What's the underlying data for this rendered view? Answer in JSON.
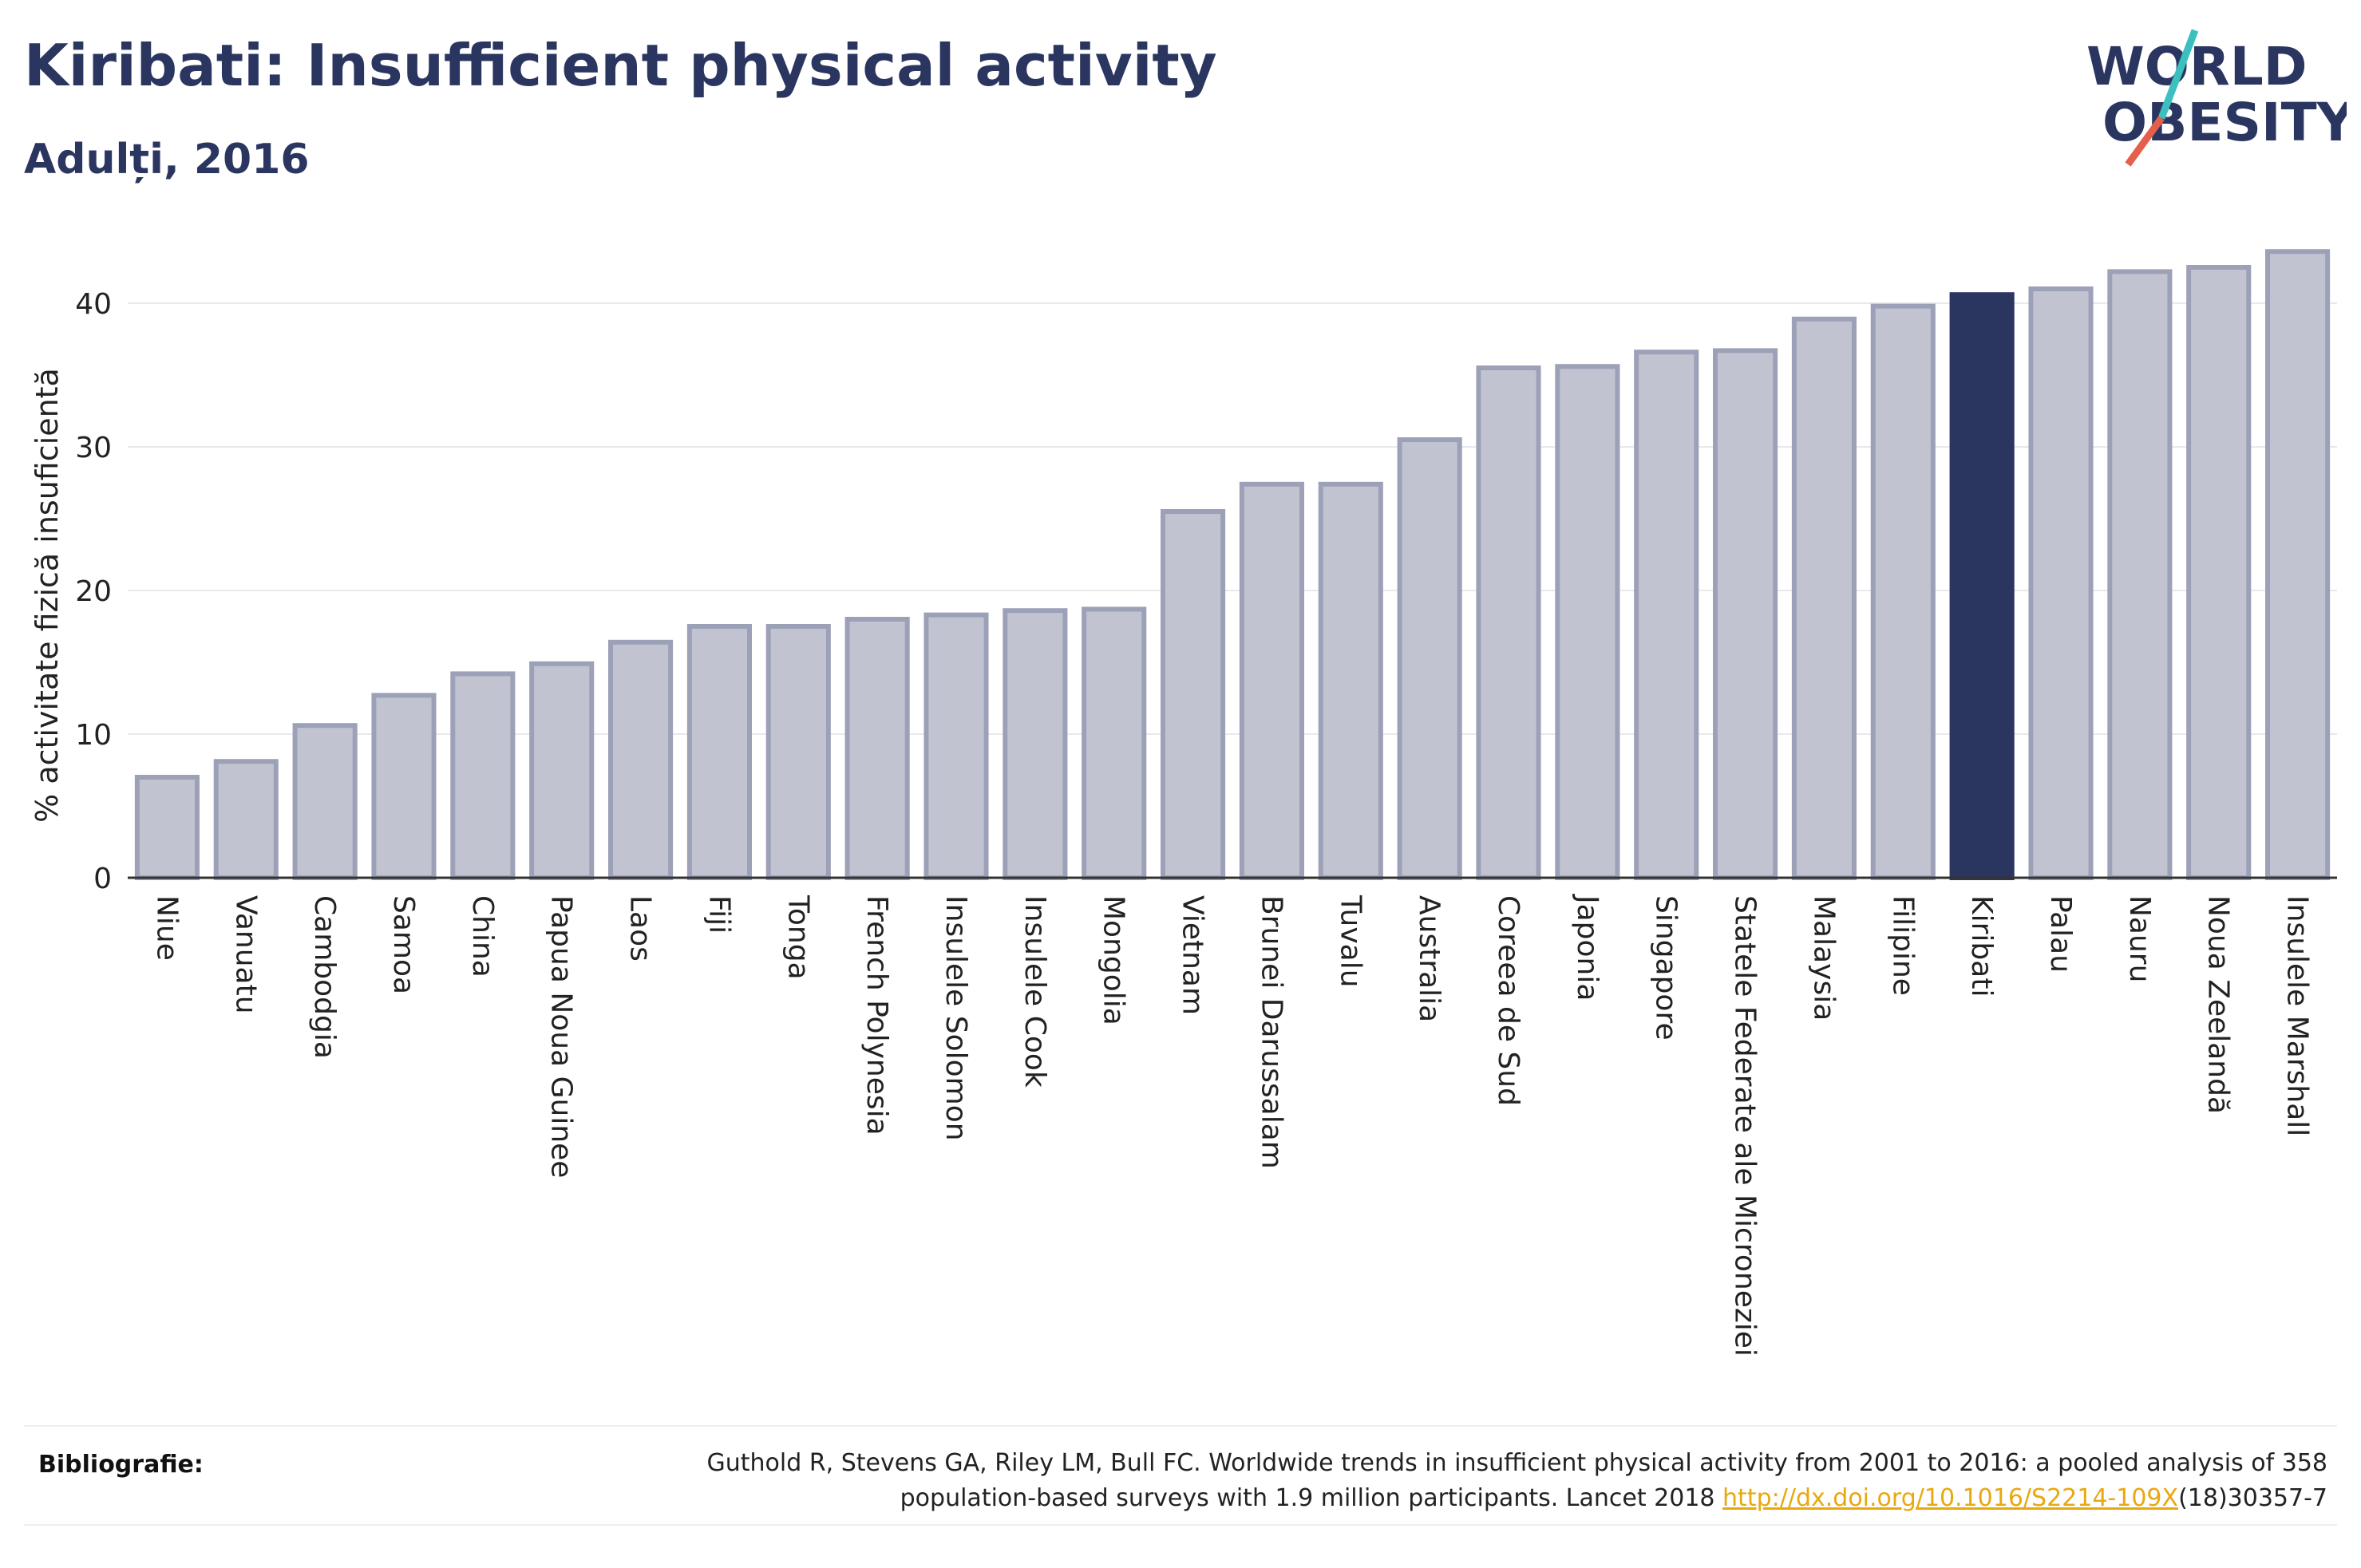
{
  "header": {
    "title": "Kiribati: Insufficient physical activity",
    "subtitle": "Adulți, 2016"
  },
  "logo": {
    "line1": "WORLD",
    "line2": "OBESITY",
    "colors": {
      "text": "#2b3660",
      "slash_teal": "#3bbfbf",
      "slash_red": "#e4604d"
    }
  },
  "chart_data": {
    "type": "bar",
    "ylabel": "% activitate fizică insuficientă",
    "ylim": [
      0,
      45
    ],
    "yticks": [
      0,
      10,
      20,
      30,
      40
    ],
    "grid": true,
    "categories": [
      "Niue",
      "Vanuatu",
      "Cambodgia",
      "Samoa",
      "China",
      "Papua Noua Guinee",
      "Laos",
      "Fiji",
      "Tonga",
      "French Polynesia",
      "Insulele Solomon",
      "Insulele Cook",
      "Mongolia",
      "Vietnam",
      "Brunei Darussalam",
      "Tuvalu",
      "Australia",
      "Coreea de Sud",
      "Japonia",
      "Singapore",
      "Statele Federate ale Microneziei",
      "Malaysia",
      "Filipine",
      "Kiribati",
      "Palau",
      "Nauru",
      "Noua Zeelandă",
      "Insulele Marshall"
    ],
    "values": [
      7.0,
      8.1,
      10.6,
      12.7,
      14.2,
      14.9,
      16.4,
      17.5,
      17.5,
      18.0,
      18.3,
      18.6,
      18.7,
      25.5,
      27.4,
      27.4,
      30.5,
      35.5,
      35.6,
      36.6,
      36.7,
      38.9,
      39.8,
      40.6,
      41.0,
      42.2,
      42.5,
      43.6
    ],
    "highlight": "Kiribati",
    "colors": {
      "bar": "#c1c4d0",
      "bar_stroke": "#9da1b8",
      "highlight": "#2b3660",
      "grid": "#e8e8ee",
      "axis": "#333333"
    }
  },
  "bibliography": {
    "label": "Bibliografie:",
    "text_line1": "Guthold R, Stevens GA, Riley LM, Bull FC. Worldwide trends in insufficient physical activity from 2001 to 2016: a pooled analysis of 358",
    "text_line2_prefix": "population-based surveys with 1.9 million participants. Lancet 2018 ",
    "link": "http://dx.doi.org/10.1016/S2214-109X",
    "text_line2_suffix": "(18)30357-7"
  }
}
